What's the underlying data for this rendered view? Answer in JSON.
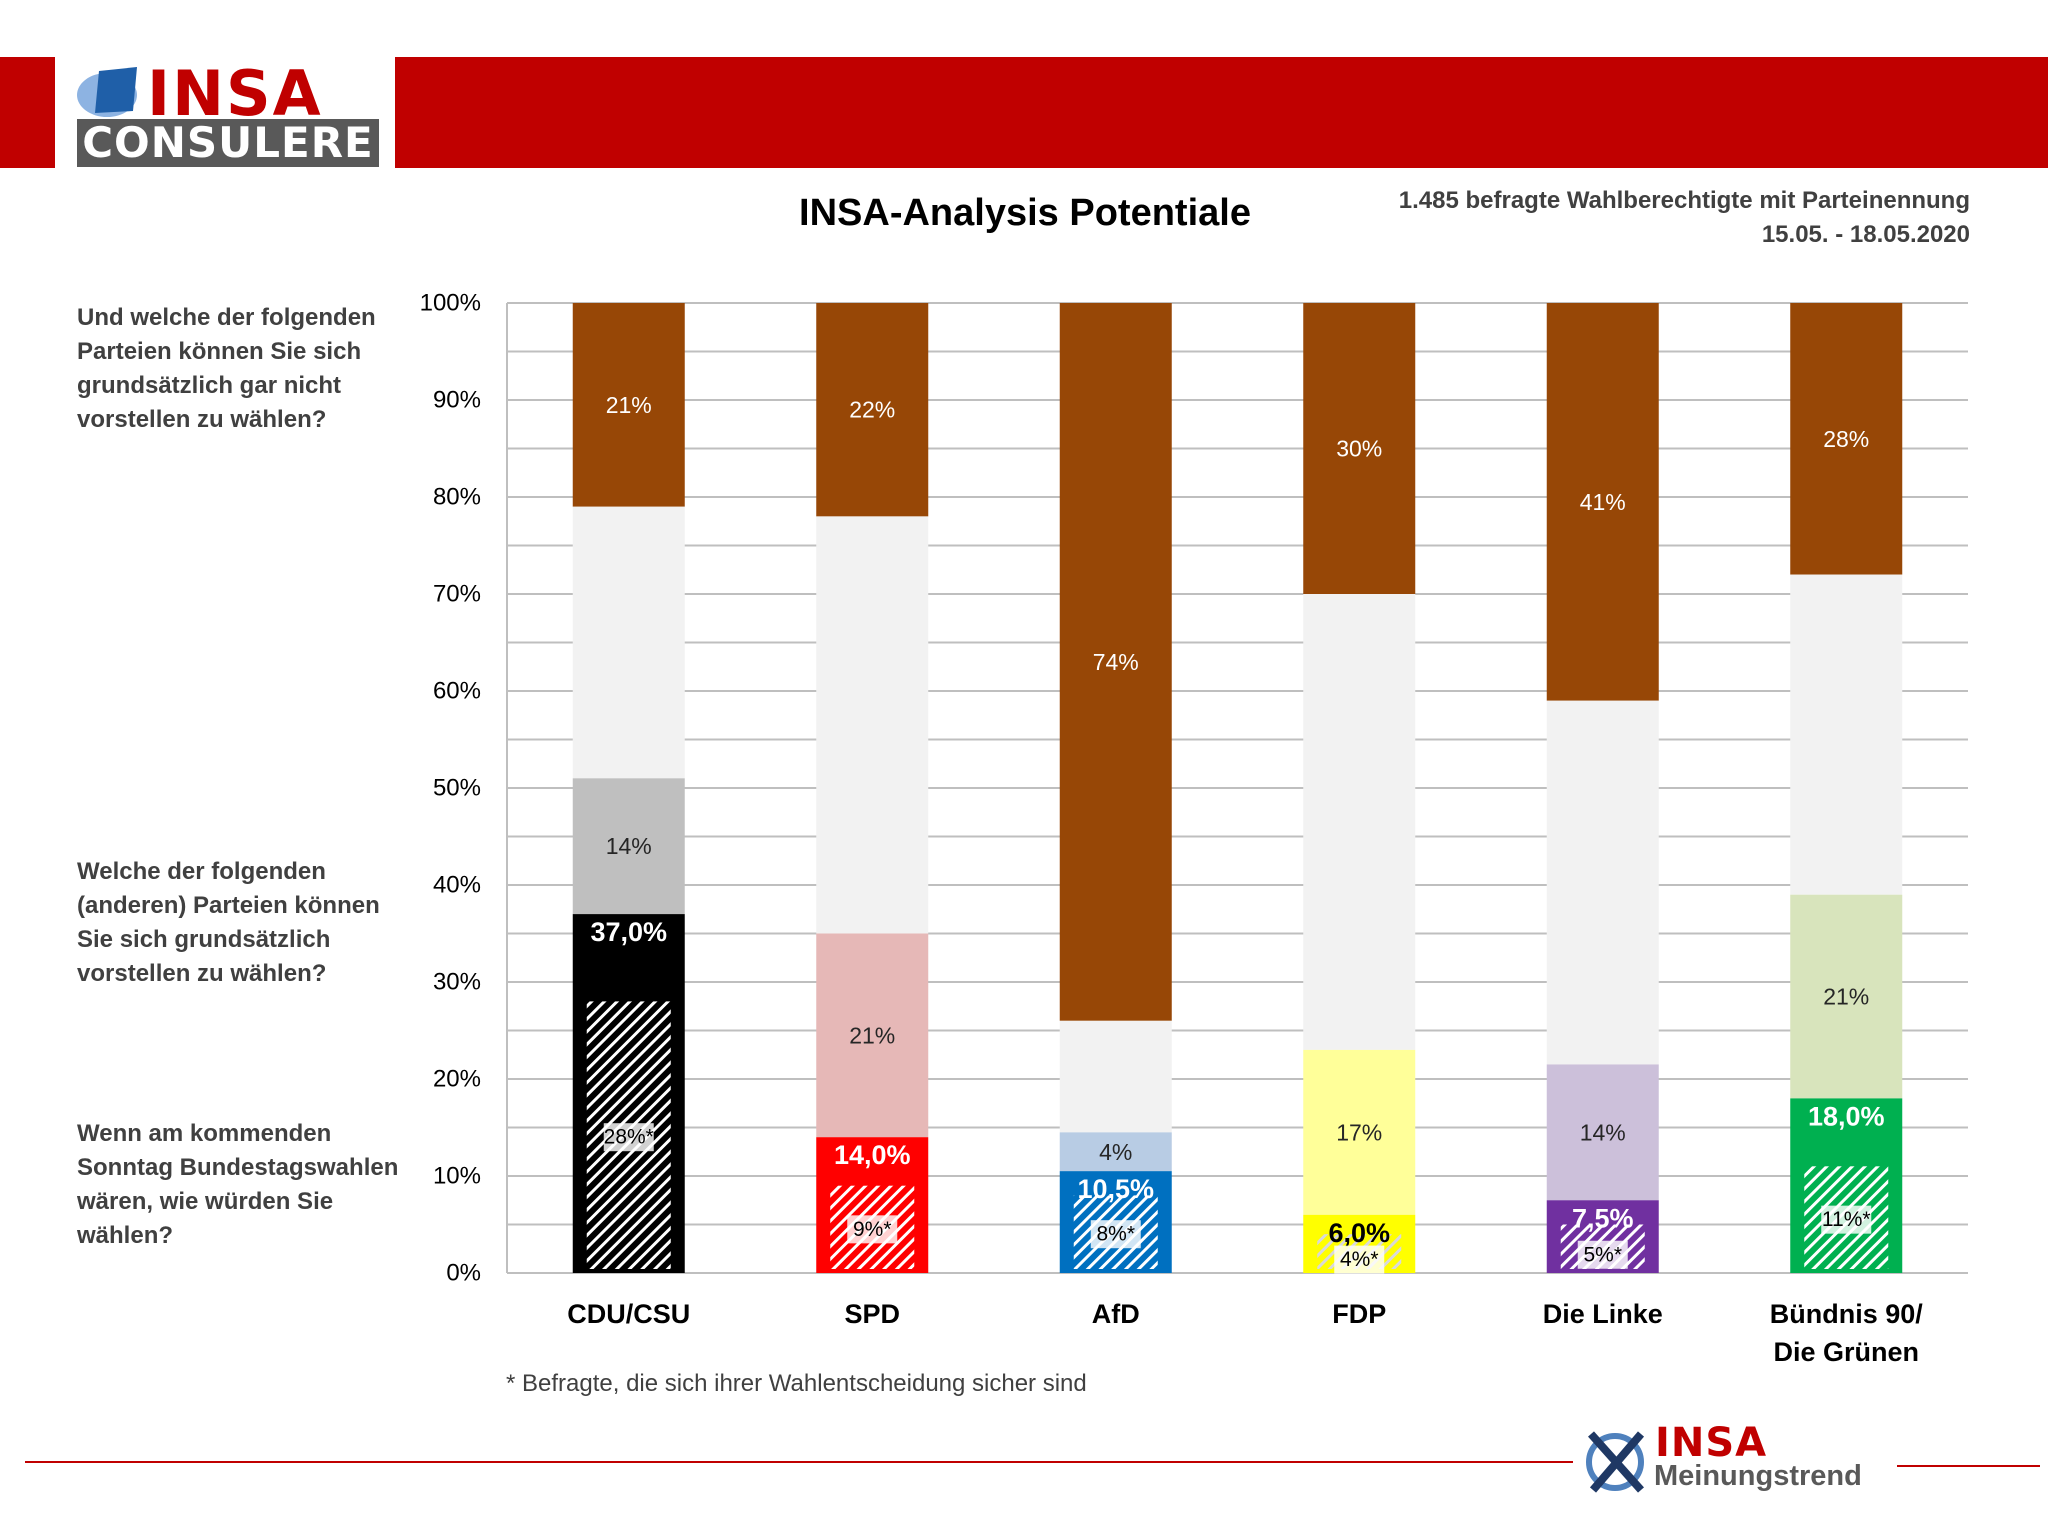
{
  "brand": {
    "name_top": "INSA",
    "name_bottom": "CONSULERE",
    "accent": "#c00000"
  },
  "header": {
    "title": "INSA-Analysis Potentiale",
    "subtitle_line1": "1.485 befragte Wahlberechtigte mit Parteinennung",
    "subtitle_line2": "15.05. - 18.05.2020"
  },
  "questions": {
    "q1": "Und welche der folgenden Parteien können Sie sich grundsätzlich gar nicht vorstellen zu wählen?",
    "q2": "Welche der folgenden (anderen) Parteien können Sie sich grundsätzlich vorstellen zu wählen?",
    "q3": "Wenn am kommenden Sonntag Bundestagswahlen wären, wie würden Sie wählen?"
  },
  "footnote": "* Befragte, die sich ihrer Wahlentscheidung sicher sind",
  "footer_brand": {
    "top": "INSA",
    "bottom": "Meinungstrend"
  },
  "chart_data": {
    "type": "bar",
    "stacked": true,
    "y_ticks": [
      "0%",
      "10%",
      "20%",
      "30%",
      "40%",
      "50%",
      "60%",
      "70%",
      "80%",
      "90%",
      "100%"
    ],
    "ylim": [
      0,
      100
    ],
    "grid": true,
    "parties": [
      {
        "name": [
          "CDU/CSU"
        ],
        "sicher": 28,
        "sicher_label": "28%*",
        "wahl": 37.0,
        "wahl_label": "37,0%",
        "potential": 14,
        "potential_label": "14%",
        "ablehnung": 21,
        "ablehnung_label": "21%",
        "color": "#000000",
        "light": "#bfbfbf",
        "hatch": "#ffffff",
        "wahl_text": "#ffffff",
        "pot_text": "#262626"
      },
      {
        "name": [
          "SPD"
        ],
        "sicher": 9,
        "sicher_label": "9%*",
        "wahl": 14.0,
        "wahl_label": "14,0%",
        "potential": 21,
        "potential_label": "21%",
        "ablehnung": 22,
        "ablehnung_label": "22%",
        "color": "#ff0000",
        "light": "#e6b8b7",
        "hatch": "#ffffff",
        "wahl_text": "#ffffff",
        "pot_text": "#262626"
      },
      {
        "name": [
          "AfD"
        ],
        "sicher": 8,
        "sicher_label": "8%*",
        "wahl": 10.5,
        "wahl_label": "10,5%",
        "potential": 4,
        "potential_label": "4%",
        "ablehnung": 74,
        "ablehnung_label": "74%",
        "color": "#0070c0",
        "light": "#b8cce4",
        "hatch": "#ffffff",
        "wahl_text": "#ffffff",
        "pot_text": "#262626"
      },
      {
        "name": [
          "FDP"
        ],
        "sicher": 4,
        "sicher_label": "4%*",
        "wahl": 6.0,
        "wahl_label": "6,0%",
        "potential": 17,
        "potential_label": "17%",
        "ablehnung": 30,
        "ablehnung_label": "30%",
        "color": "#ffff00",
        "light": "#ffff99",
        "hatch": "#d9d9d9",
        "wahl_text": "#000000",
        "pot_text": "#262626"
      },
      {
        "name": [
          "Die Linke"
        ],
        "sicher": 5,
        "sicher_label": "5%*",
        "wahl": 7.5,
        "wahl_label": "7,5%",
        "potential": 14,
        "potential_label": "14%",
        "ablehnung": 41,
        "ablehnung_label": "41%",
        "color": "#7030a0",
        "light": "#ccc0da",
        "hatch": "#ffffff",
        "wahl_text": "#ffffff",
        "pot_text": "#262626"
      },
      {
        "name": [
          "Bündnis 90/",
          "Die Grünen"
        ],
        "sicher": 11,
        "sicher_label": "11%*",
        "wahl": 18.0,
        "wahl_label": "18,0%",
        "potential": 21,
        "potential_label": "21%",
        "ablehnung": 28,
        "ablehnung_label": "28%",
        "color": "#00b050",
        "light": "#d8e4bc",
        "hatch": "#ffffff",
        "wahl_text": "#ffffff",
        "pot_text": "#262626"
      }
    ],
    "colors": {
      "ablehnung": "#974706",
      "rest": "#f2f2f2",
      "grid": "#bfbfbf",
      "axis_text": "#000000"
    }
  }
}
